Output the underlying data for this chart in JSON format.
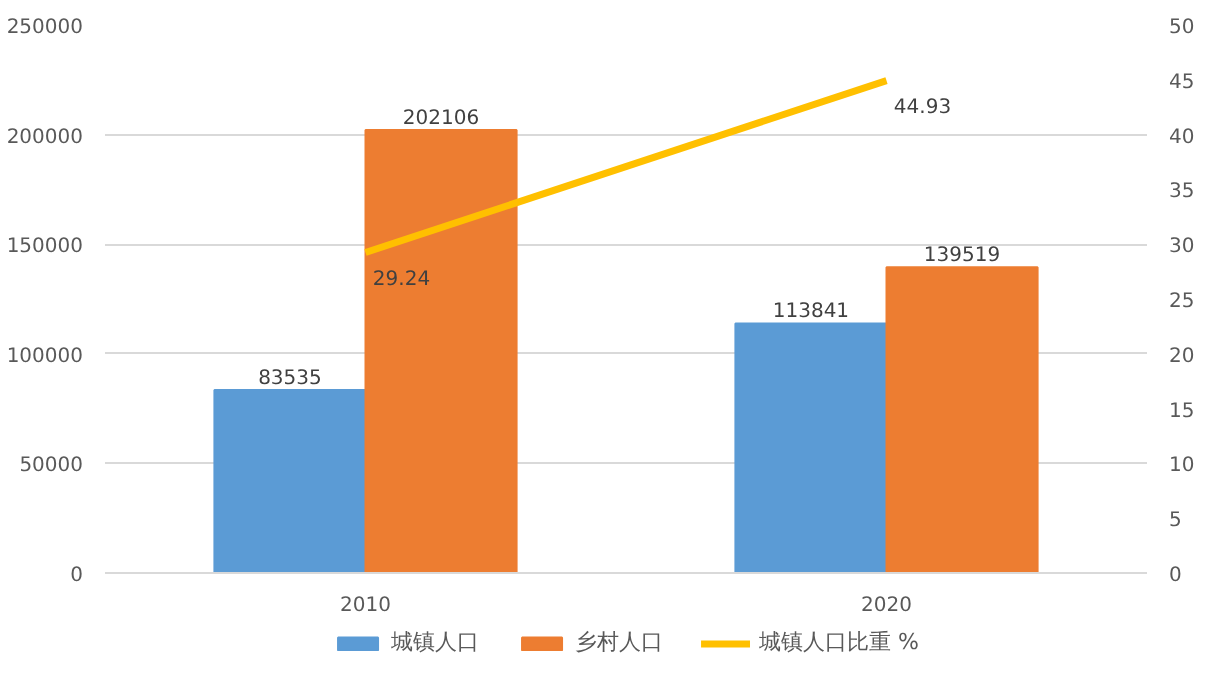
{
  "chart_data": {
    "type": "bar",
    "categories": [
      "2010",
      "2020"
    ],
    "series": [
      {
        "name": "城镇人口",
        "color": "#5b9bd5",
        "values": [
          83535,
          113841
        ]
      },
      {
        "name": "乡村人口",
        "color": "#ed7d31",
        "values": [
          202106,
          139519
        ]
      },
      {
        "name": "城镇人口比重 %",
        "color": "#ffc000",
        "values": [
          29.24,
          44.93
        ],
        "type": "line",
        "axis": "y2"
      }
    ],
    "ylim": [
      0,
      250000
    ],
    "yticks": [
      0,
      50000,
      100000,
      150000,
      200000,
      250000
    ],
    "y2lim": [
      0,
      50
    ],
    "y2ticks": [
      0,
      5,
      10,
      15,
      20,
      25,
      30,
      35,
      40,
      45,
      50
    ],
    "data_labels": true,
    "grid": "y",
    "legend": "bottom",
    "marker": "none"
  }
}
